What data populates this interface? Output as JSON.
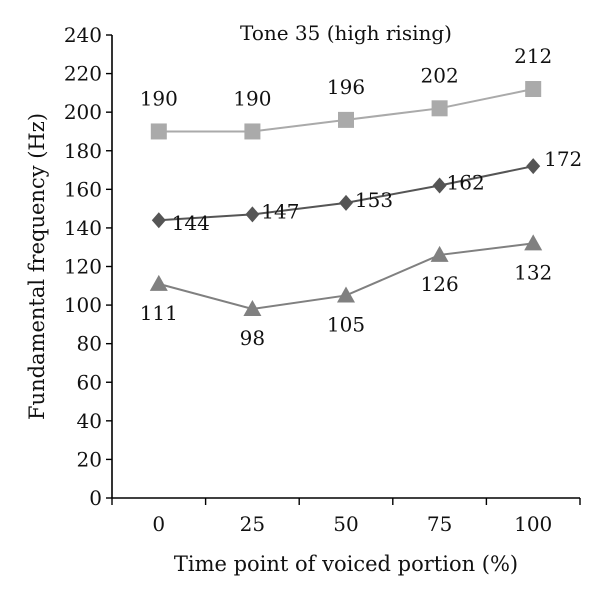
{
  "chart_data": {
    "type": "line",
    "title": "Tone 35 (high rising)",
    "xlabel": "Time point of voiced portion (%)",
    "ylabel": "Fundamental frequency (Hz)",
    "x": [
      0,
      25,
      50,
      75,
      100
    ],
    "categories": [
      "0",
      "25",
      "50",
      "75",
      "100"
    ],
    "ylim": [
      0,
      240
    ],
    "yticks": [
      0,
      20,
      40,
      60,
      80,
      100,
      120,
      140,
      160,
      180,
      200,
      220,
      240
    ],
    "grid": false,
    "legend": "none",
    "series": [
      {
        "values": [
          190,
          190,
          196,
          202,
          212
        ],
        "labels": [
          "190",
          "190",
          "196",
          "202",
          "212"
        ],
        "marker": "square",
        "color": "#aaaaaa",
        "label_position": "above"
      },
      {
        "values": [
          144,
          147,
          153,
          162,
          172
        ],
        "labels": [
          "144",
          "147",
          "153",
          "162",
          "172"
        ],
        "marker": "diamond",
        "color": "#555555",
        "label_position": "right"
      },
      {
        "values": [
          111,
          98,
          105,
          126,
          132
        ],
        "labels": [
          "111",
          "98",
          "105",
          "126",
          "132"
        ],
        "marker": "triangle",
        "color": "#808080",
        "label_position": "below"
      }
    ]
  }
}
